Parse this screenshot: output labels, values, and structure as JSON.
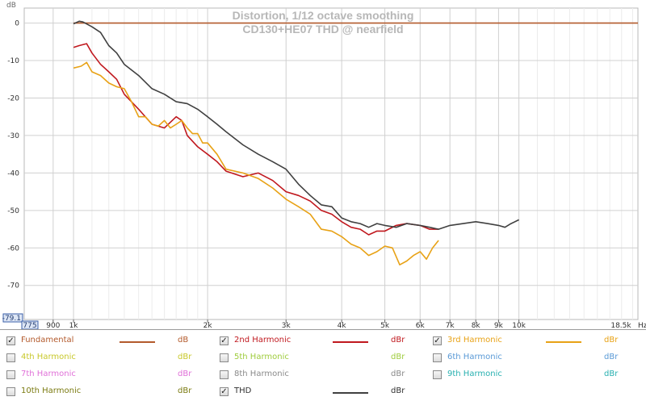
{
  "window_title": "",
  "chart_data": {
    "type": "line",
    "title": "Distortion, 1/12 octave smoothing",
    "subtitle": "CD130+HE07 THD @ nearfield",
    "ylabel": "dB",
    "xlabel": "Hz",
    "x_scale": "log",
    "xlim": [
      775,
      18500
    ],
    "ylim": [
      -79.1,
      4
    ],
    "grid": true,
    "x_range_labels": {
      "min": "775",
      "max": "18.5k"
    },
    "y_min_label": "-79.1",
    "x_ticks": [
      {
        "value": 900,
        "label": "900"
      },
      {
        "value": 1000,
        "label": "1k"
      },
      {
        "value": 2000,
        "label": "2k"
      },
      {
        "value": 3000,
        "label": "3k"
      },
      {
        "value": 4000,
        "label": "4k"
      },
      {
        "value": 5000,
        "label": "5k"
      },
      {
        "value": 6000,
        "label": "6k"
      },
      {
        "value": 7000,
        "label": "7k"
      },
      {
        "value": 8000,
        "label": "8k"
      },
      {
        "value": 9000,
        "label": "9k"
      },
      {
        "value": 10000,
        "label": "10k"
      }
    ],
    "y_ticks": [
      {
        "value": 0,
        "label": "0"
      },
      {
        "value": -10,
        "label": "-10"
      },
      {
        "value": -20,
        "label": "-20"
      },
      {
        "value": -30,
        "label": "-30"
      },
      {
        "value": -40,
        "label": "-40"
      },
      {
        "value": -50,
        "label": "-50"
      },
      {
        "value": -60,
        "label": "-60"
      },
      {
        "value": -70,
        "label": "-70"
      }
    ],
    "series": [
      {
        "name": "Fundamental",
        "color": "#b35a2c",
        "unit": "dB",
        "x": [
          1000,
          18500
        ],
        "y": [
          0,
          0
        ]
      },
      {
        "name": "2nd Harmonic",
        "color": "#c0181e",
        "unit": "dBr",
        "x": [
          1000,
          1030,
          1070,
          1100,
          1150,
          1200,
          1250,
          1300,
          1400,
          1500,
          1600,
          1700,
          1750,
          1800,
          1900,
          2000,
          2100,
          2200,
          2400,
          2600,
          2800,
          3000,
          3200,
          3400,
          3600,
          3800,
          4000,
          4200,
          4400,
          4600,
          4800,
          5000,
          5300,
          5600,
          6000,
          6300,
          6600
        ],
        "y": [
          -6.5,
          -6,
          -5.5,
          -8,
          -11,
          -13,
          -15,
          -19,
          -23,
          -27,
          -28,
          -25,
          -26,
          -30,
          -33,
          -35,
          -37,
          -39.5,
          -41,
          -40,
          -42,
          -45,
          -46,
          -47.5,
          -50,
          -51,
          -53,
          -54.5,
          -55,
          -56.5,
          -55.5,
          -55.5,
          -54,
          -53.5,
          -54,
          -55,
          -55
        ]
      },
      {
        "name": "3rd Harmonic",
        "color": "#e8a216",
        "unit": "dBr",
        "x": [
          1000,
          1040,
          1070,
          1100,
          1150,
          1200,
          1250,
          1300,
          1350,
          1400,
          1450,
          1500,
          1550,
          1600,
          1650,
          1700,
          1750,
          1800,
          1850,
          1900,
          1950,
          2000,
          2100,
          2200,
          2400,
          2600,
          2800,
          3000,
          3200,
          3400,
          3600,
          3800,
          4000,
          4200,
          4400,
          4600,
          4800,
          5000,
          5200,
          5400,
          5600,
          5800,
          6000,
          6200,
          6400,
          6600
        ],
        "y": [
          -12,
          -11.5,
          -10.5,
          -13,
          -14,
          -16,
          -17,
          -17.5,
          -21,
          -25,
          -25,
          -27,
          -27.5,
          -26,
          -28,
          -27,
          -26,
          -28,
          -29.5,
          -29.5,
          -32,
          -32,
          -35,
          -39,
          -40,
          -41.5,
          -44,
          -47,
          -49,
          -51,
          -55,
          -55.5,
          -57,
          -59,
          -60,
          -62,
          -61,
          -59.5,
          -60,
          -64.5,
          -63.5,
          -62,
          -61,
          -63,
          -60,
          -58
        ]
      },
      {
        "name": "THD",
        "color": "#404040",
        "unit": "dBr",
        "x": [
          1000,
          1030,
          1050,
          1100,
          1150,
          1200,
          1250,
          1300,
          1400,
          1500,
          1600,
          1700,
          1800,
          1900,
          2000,
          2100,
          2200,
          2400,
          2600,
          2800,
          3000,
          3200,
          3400,
          3600,
          3800,
          4000,
          4200,
          4400,
          4600,
          4800,
          5000,
          5300,
          5600,
          6000,
          6300,
          6600,
          7000,
          7500,
          8000,
          8500,
          9000,
          9300,
          9600,
          10000
        ],
        "y": [
          -0.2,
          0.5,
          0.3,
          -1,
          -2.5,
          -6,
          -8,
          -11,
          -14,
          -17.5,
          -19,
          -21,
          -21.5,
          -23,
          -25,
          -27,
          -29,
          -32.5,
          -35,
          -37,
          -39,
          -43,
          -46,
          -48.5,
          -49,
          -52,
          -53,
          -53.5,
          -54.5,
          -53.5,
          -54,
          -54.5,
          -53.5,
          -54,
          -54.5,
          -55,
          -54,
          -53.5,
          -53,
          -53.5,
          -54,
          -54.5,
          -53.5,
          -52.5
        ]
      }
    ]
  },
  "legend": {
    "rows": [
      [
        {
          "label": "Fundamental",
          "checked": true,
          "color": "#b35a2c",
          "text_color": "#b35a2c",
          "unit": "dB",
          "swatch": true
        },
        {
          "label": "2nd Harmonic",
          "checked": true,
          "color": "#c0181e",
          "text_color": "#c0181e",
          "unit": "dBr",
          "swatch": true
        },
        {
          "label": "3rd Harmonic",
          "checked": true,
          "color": "#e8a216",
          "text_color": "#e8a216",
          "unit": "dBr",
          "swatch": true
        }
      ],
      [
        {
          "label": "4th Harmonic",
          "checked": false,
          "color": "#c8c82a",
          "text_color": "#c8c82a",
          "unit": "dBr",
          "swatch": false
        },
        {
          "label": "5th Harmonic",
          "checked": false,
          "color": "#9fcc3c",
          "text_color": "#9fcc3c",
          "unit": "dBr",
          "swatch": false
        },
        {
          "label": "6th Harmonic",
          "checked": false,
          "color": "#5a9ad6",
          "text_color": "#5a9ad6",
          "unit": "dBr",
          "swatch": false
        }
      ],
      [
        {
          "label": "7th Harmonic",
          "checked": false,
          "color": "#e070d8",
          "text_color": "#e070d8",
          "unit": "dBr",
          "swatch": false
        },
        {
          "label": "8th Harmonic",
          "checked": false,
          "color": "#8a8a8a",
          "text_color": "#8a8a8a",
          "unit": "dBr",
          "swatch": false
        },
        {
          "label": "9th Harmonic",
          "checked": false,
          "color": "#28b0b0",
          "text_color": "#28b0b0",
          "unit": "dBr",
          "swatch": false
        }
      ],
      [
        {
          "label": "10th Harmonic",
          "checked": false,
          "color": "#7a7a10",
          "text_color": "#7a7a10",
          "unit": "dBr",
          "swatch": false
        },
        {
          "label": "THD",
          "checked": true,
          "color": "#404040",
          "text_color": "#303030",
          "unit": "dBr",
          "swatch": true
        }
      ]
    ]
  }
}
